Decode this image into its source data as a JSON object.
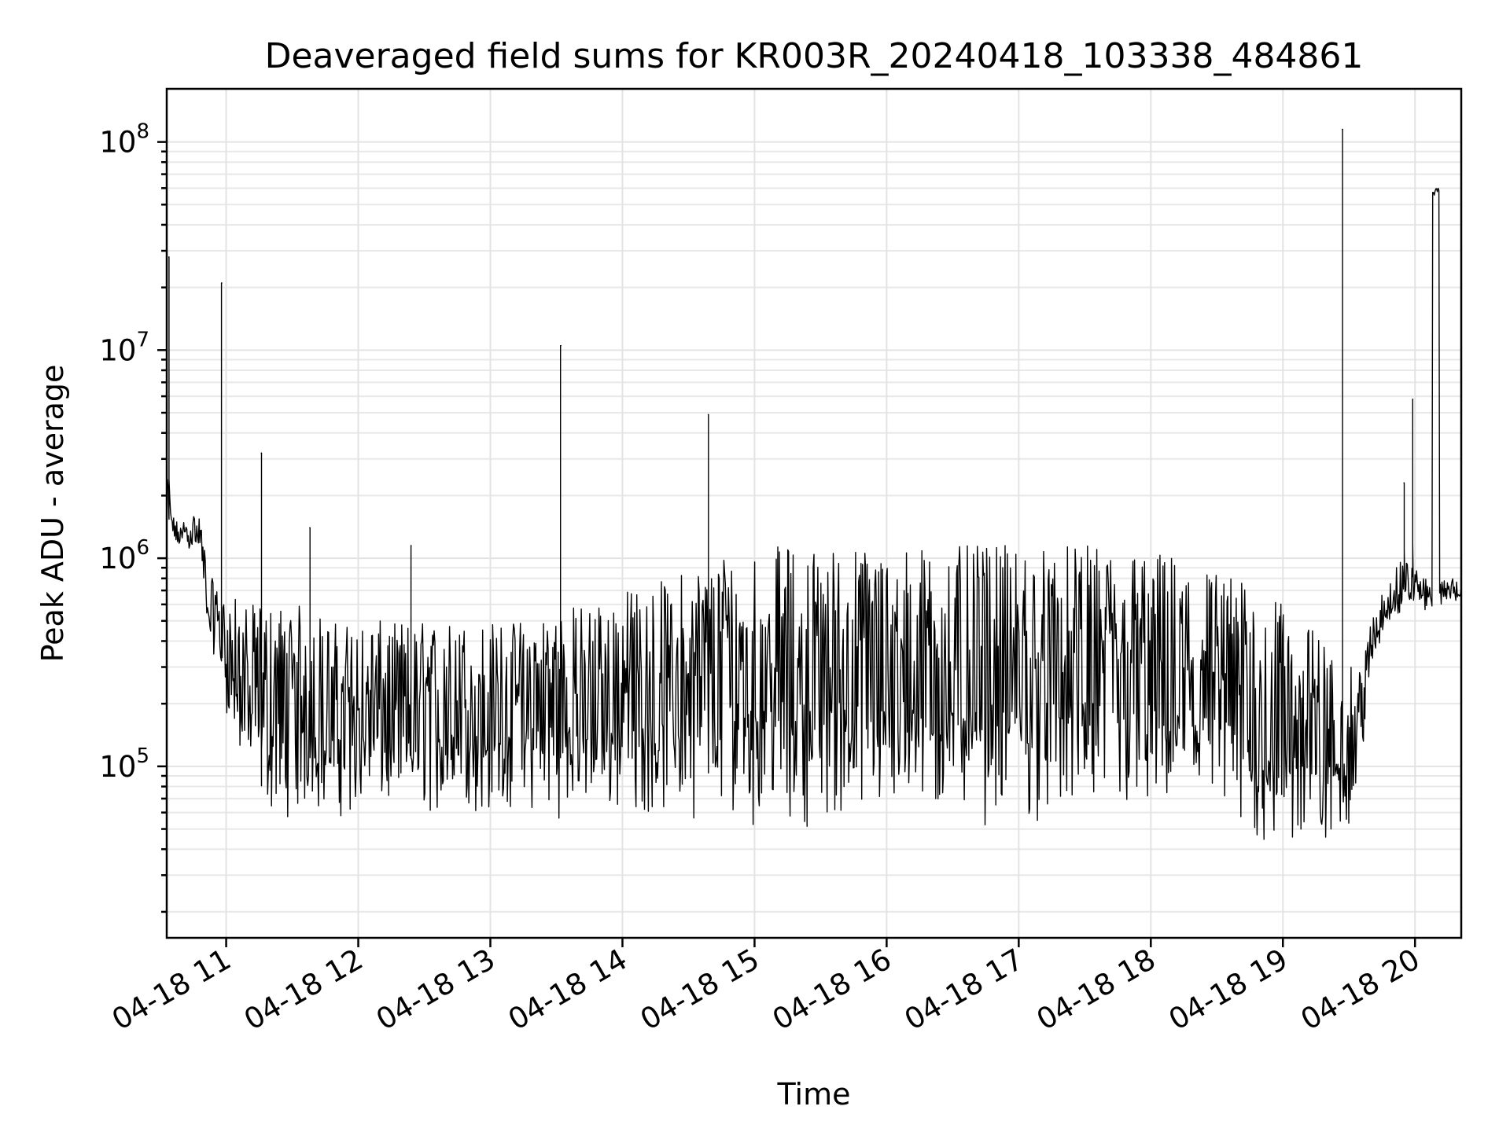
{
  "chart_data": {
    "type": "line",
    "title": "Deaveraged field sums for KR003R_20240418_103338_484861",
    "xlabel": "Time",
    "ylabel": "Peak ADU - average",
    "yscale": "log",
    "xlim": [
      "2024-04-18 10:33",
      "2024-04-18 20:21"
    ],
    "ylim": [
      15000,
      180000000
    ],
    "grid": true,
    "x_ticks": [
      "2024-04-18 11:00",
      "2024-04-18 12:00",
      "2024-04-18 13:00",
      "2024-04-18 14:00",
      "2024-04-18 15:00",
      "2024-04-18 16:00",
      "2024-04-18 17:00",
      "2024-04-18 18:00",
      "2024-04-18 19:00",
      "2024-04-18 20:00"
    ],
    "x_tick_labels": [
      "04-18 11",
      "04-18 12",
      "04-18 13",
      "04-18 14",
      "04-18 15",
      "04-18 16",
      "04-18 17",
      "04-18 18",
      "04-18 19",
      "04-18 20"
    ],
    "y_ticks": [
      100000,
      1000000,
      10000000,
      100000000
    ],
    "y_tick_labels": [
      {
        "base": "10",
        "exp": "5"
      },
      {
        "base": "10",
        "exp": "6"
      },
      {
        "base": "10",
        "exp": "7"
      },
      {
        "base": "10",
        "exp": "8"
      }
    ],
    "series": [
      {
        "color": "#000000",
        "x": [
          "2024-04-18 10:33",
          "2024-04-18 10:34",
          "2024-04-18 10:35",
          "2024-04-18 10:36",
          "2024-04-18 10:38",
          "2024-04-18 10:40",
          "2024-04-18 10:44",
          "2024-04-18 10:48",
          "2024-04-18 10:52",
          "2024-04-18 10:54",
          "2024-04-18 10:56",
          "2024-04-18 10:58",
          "2024-04-18 10:59",
          "2024-04-18 11:00",
          "2024-04-18 11:02",
          "2024-04-18 11:04",
          "2024-04-18 11:06",
          "2024-04-18 11:08",
          "2024-04-18 11:10",
          "2024-04-18 11:12",
          "2024-04-18 11:16",
          "2024-04-18 11:18",
          "2024-04-18 11:20",
          "2024-04-18 11:25",
          "2024-04-18 11:30",
          "2024-04-18 11:35",
          "2024-04-18 11:40",
          "2024-04-18 11:45",
          "2024-04-18 11:50",
          "2024-04-18 11:55",
          "2024-04-18 12:00",
          "2024-04-18 12:10",
          "2024-04-18 12:20",
          "2024-04-18 12:30",
          "2024-04-18 12:40",
          "2024-04-18 12:50",
          "2024-04-18 13:00",
          "2024-04-18 13:10",
          "2024-04-18 13:20",
          "2024-04-18 13:30",
          "2024-04-18 13:40",
          "2024-04-18 13:50",
          "2024-04-18 14:00",
          "2024-04-18 14:10",
          "2024-04-18 14:20",
          "2024-04-18 14:30",
          "2024-04-18 14:40",
          "2024-04-18 14:45",
          "2024-04-18 14:50",
          "2024-04-18 15:00",
          "2024-04-18 15:20",
          "2024-04-18 15:40",
          "2024-04-18 16:00",
          "2024-04-18 16:20",
          "2024-04-18 16:40",
          "2024-04-18 17:00",
          "2024-04-18 17:20",
          "2024-04-18 17:40",
          "2024-04-18 18:00",
          "2024-04-18 18:20",
          "2024-04-18 18:40",
          "2024-04-18 18:50",
          "2024-04-18 19:00",
          "2024-04-18 19:10",
          "2024-04-18 19:20",
          "2024-04-18 19:25",
          "2024-04-18 19:30",
          "2024-04-18 19:35",
          "2024-04-18 19:40",
          "2024-04-18 19:45",
          "2024-04-18 19:50",
          "2024-04-18 19:55",
          "2024-04-18 20:00",
          "2024-04-18 20:05",
          "2024-04-18 20:10",
          "2024-04-18 20:15",
          "2024-04-18 20:20"
        ],
        "y_low": [
          1400000,
          1200000,
          1200000,
          1200000,
          1100000,
          1100000,
          1100000,
          1000000,
          400000,
          350000,
          300000,
          250000,
          200000,
          180000,
          150000,
          120000,
          100000,
          90000,
          80000,
          70000,
          60000,
          60000,
          55000,
          55000,
          55000,
          55000,
          55000,
          55000,
          55000,
          55000,
          55000,
          55000,
          55000,
          55000,
          55000,
          55000,
          55000,
          55000,
          55000,
          55000,
          55000,
          55000,
          55000,
          55000,
          55000,
          55000,
          55000,
          55000,
          55000,
          50000,
          50000,
          50000,
          50000,
          50000,
          50000,
          50000,
          50000,
          50000,
          50000,
          50000,
          40000,
          35000,
          35000,
          35000,
          35000,
          40000,
          50000,
          80000,
          250000,
          400000,
          500000,
          550000,
          600000,
          550000,
          600000,
          600000,
          600000
        ],
        "y_high": [
          2500000,
          2200000,
          1800000,
          1600000,
          1500000,
          1500000,
          1600000,
          1700000,
          800000,
          800000,
          700000,
          700000,
          650000,
          650000,
          650000,
          650000,
          600000,
          600000,
          600000,
          600000,
          600000,
          600000,
          600000,
          600000,
          600000,
          600000,
          600000,
          500000,
          500000,
          500000,
          500000,
          500000,
          500000,
          500000,
          500000,
          500000,
          500000,
          500000,
          550000,
          600000,
          600000,
          650000,
          700000,
          750000,
          800000,
          900000,
          1000000,
          1100000,
          1150000,
          1150000,
          1150000,
          1150000,
          1150000,
          1150000,
          1150000,
          1150000,
          1150000,
          1150000,
          1100000,
          1000000,
          800000,
          700000,
          600000,
          500000,
          400000,
          350000,
          300000,
          300000,
          500000,
          700000,
          900000,
          1000000,
          900000,
          800000,
          800000,
          800000,
          800000
        ],
        "spikes": [
          {
            "x": "2024-04-18 10:34",
            "y": 28000000
          },
          {
            "x": "2024-04-18 10:58",
            "y": 21000000
          },
          {
            "x": "2024-04-18 11:16",
            "y": 3200000
          },
          {
            "x": "2024-04-18 11:38",
            "y": 1400000
          },
          {
            "x": "2024-04-18 12:24",
            "y": 1150000
          },
          {
            "x": "2024-04-18 13:32",
            "y": 10500000
          },
          {
            "x": "2024-04-18 14:39",
            "y": 4900000
          },
          {
            "x": "2024-04-18 19:27",
            "y": 115000000
          },
          {
            "x": "2024-04-18 19:59",
            "y": 5800000
          },
          {
            "x": "2024-04-18 19:55",
            "y": 2300000
          }
        ],
        "plateau": {
          "x_start": "2024-04-18 20:08",
          "x_end": "2024-04-18 20:11",
          "y": 60000000
        }
      }
    ]
  }
}
